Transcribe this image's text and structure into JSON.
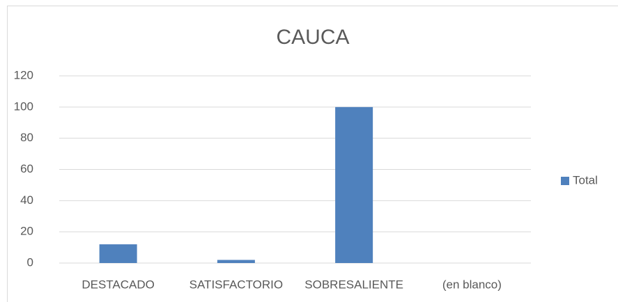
{
  "chart_data": {
    "type": "bar",
    "title": "CAUCA",
    "categories": [
      "DESTACADO",
      "SATISFACTORIO",
      "SOBRESALIENTE",
      "(en blanco)"
    ],
    "series": [
      {
        "name": "Total",
        "color": "#4f81bd",
        "values": [
          12,
          2,
          100,
          null
        ]
      }
    ],
    "ylim": [
      0,
      120
    ],
    "yticks": [
      0,
      20,
      40,
      60,
      80,
      100,
      120
    ],
    "grid": true,
    "legend": "right"
  }
}
